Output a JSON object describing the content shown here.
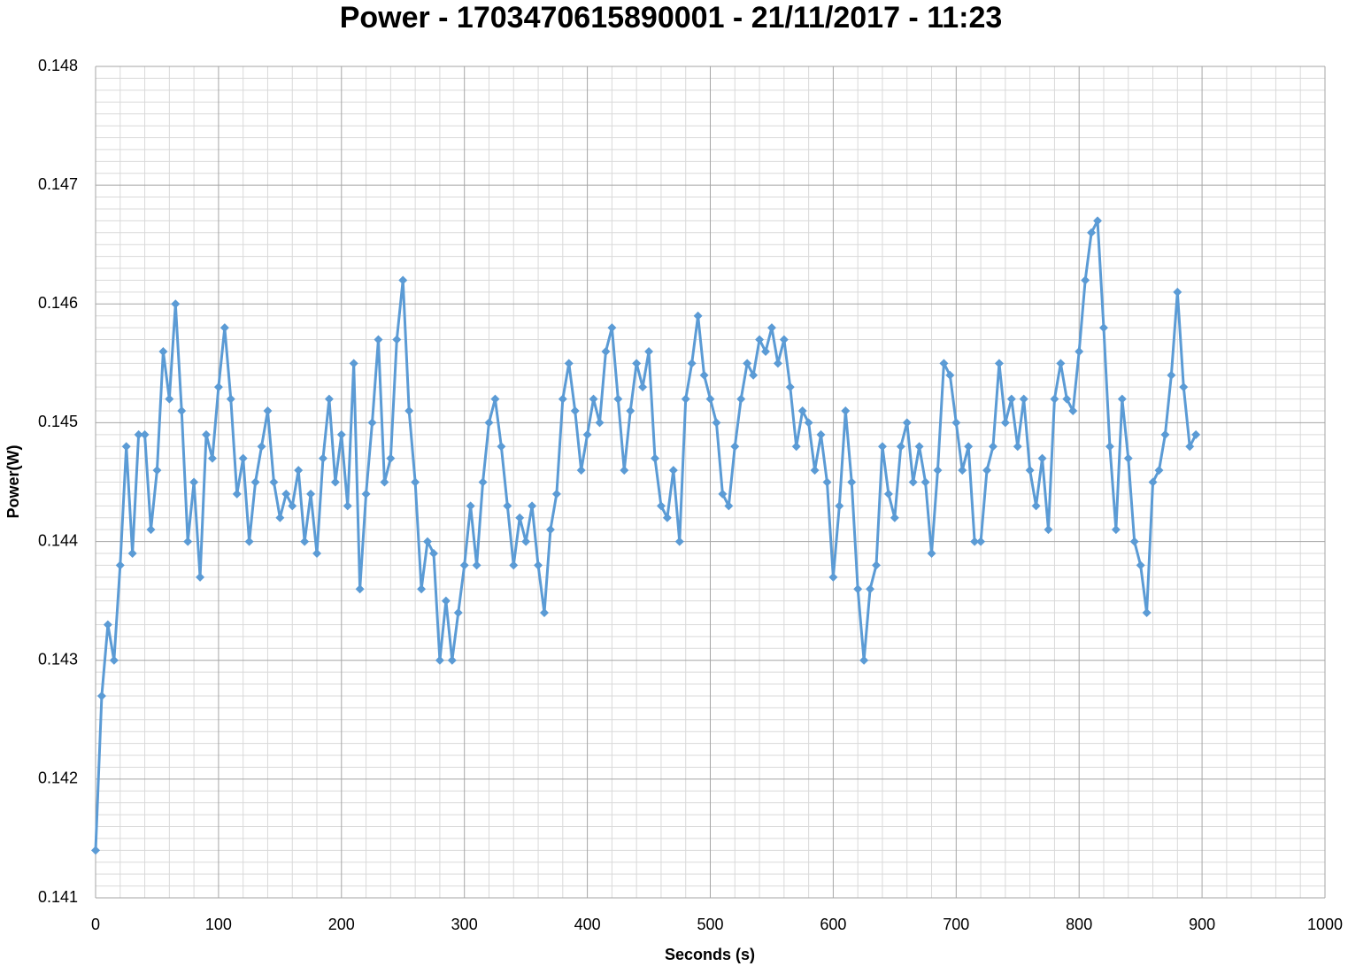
{
  "chart_data": {
    "type": "line",
    "title": "Power - 1703470615890001 - 21/11/2017 - 11:23",
    "x_label": "Seconds (s)",
    "y_label": "Power(W)",
    "xlim": [
      0,
      1000
    ],
    "xticks": [
      0,
      100,
      200,
      300,
      400,
      500,
      600,
      700,
      800,
      900,
      1000
    ],
    "ylim": [
      0.141,
      0.148
    ],
    "yticks": [
      0.141,
      0.142,
      0.143,
      0.144,
      0.145,
      0.146,
      0.147,
      0.148
    ],
    "grid": true,
    "minor_grid": true,
    "marker": "diamond",
    "x": [
      0,
      5,
      10,
      15,
      20,
      25,
      30,
      35,
      40,
      45,
      50,
      55,
      60,
      65,
      70,
      75,
      80,
      85,
      90,
      95,
      100,
      105,
      110,
      115,
      120,
      125,
      130,
      135,
      140,
      145,
      150,
      155,
      160,
      165,
      170,
      175,
      180,
      185,
      190,
      195,
      200,
      205,
      210,
      215,
      220,
      225,
      230,
      235,
      240,
      245,
      250,
      255,
      260,
      265,
      270,
      275,
      280,
      285,
      290,
      295,
      300,
      305,
      310,
      315,
      320,
      325,
      330,
      335,
      340,
      345,
      350,
      355,
      360,
      365,
      370,
      375,
      380,
      385,
      390,
      395,
      400,
      405,
      410,
      415,
      420,
      425,
      430,
      435,
      440,
      445,
      450,
      455,
      460,
      465,
      470,
      475,
      480,
      485,
      490,
      495,
      500,
      505,
      510,
      515,
      520,
      525,
      530,
      535,
      540,
      545,
      550,
      555,
      560,
      565,
      570,
      575,
      580,
      585,
      590,
      595,
      600,
      605,
      610,
      615,
      620,
      625,
      630,
      635,
      640,
      645,
      650,
      655,
      660,
      665,
      670,
      675,
      680,
      685,
      690,
      695,
      700,
      705,
      710,
      715,
      720,
      725,
      730,
      735,
      740,
      745,
      750,
      755,
      760,
      765,
      770,
      775,
      780,
      785,
      790,
      795,
      800,
      805,
      810,
      815,
      820,
      825,
      830,
      835,
      840,
      845,
      850,
      855,
      860,
      865,
      870,
      875,
      880,
      885,
      890,
      895
    ],
    "series": [
      {
        "name": "Power(W)",
        "color": "#5b9bd5",
        "values": [
          0.1414,
          0.1427,
          0.1433,
          0.143,
          0.1438,
          0.1448,
          0.1439,
          0.1449,
          0.1449,
          0.1441,
          0.1446,
          0.1456,
          0.1452,
          0.146,
          0.1451,
          0.144,
          0.1445,
          0.1437,
          0.1449,
          0.1447,
          0.1453,
          0.1458,
          0.1452,
          0.1444,
          0.1447,
          0.144,
          0.1445,
          0.1448,
          0.1451,
          0.1445,
          0.1442,
          0.1444,
          0.1443,
          0.1446,
          0.144,
          0.1444,
          0.1439,
          0.1447,
          0.1452,
          0.1445,
          0.1449,
          0.1443,
          0.1455,
          0.1436,
          0.1444,
          0.145,
          0.1457,
          0.1445,
          0.1447,
          0.1457,
          0.1462,
          0.1451,
          0.1445,
          0.1436,
          0.144,
          0.1439,
          0.143,
          0.1435,
          0.143,
          0.1434,
          0.1438,
          0.1443,
          0.1438,
          0.1445,
          0.145,
          0.1452,
          0.1448,
          0.1443,
          0.1438,
          0.1442,
          0.144,
          0.1443,
          0.1438,
          0.1434,
          0.1441,
          0.1444,
          0.1452,
          0.1455,
          0.1451,
          0.1446,
          0.1449,
          0.1452,
          0.145,
          0.1456,
          0.1458,
          0.1452,
          0.1446,
          0.1451,
          0.1455,
          0.1453,
          0.1456,
          0.1447,
          0.1443,
          0.1442,
          0.1446,
          0.144,
          0.1452,
          0.1455,
          0.1459,
          0.1454,
          0.1452,
          0.145,
          0.1444,
          0.1443,
          0.1448,
          0.1452,
          0.1455,
          0.1454,
          0.1457,
          0.1456,
          0.1458,
          0.1455,
          0.1457,
          0.1453,
          0.1448,
          0.1451,
          0.145,
          0.1446,
          0.1449,
          0.1445,
          0.1437,
          0.1443,
          0.1451,
          0.1445,
          0.1436,
          0.143,
          0.1436,
          0.1438,
          0.1448,
          0.1444,
          0.1442,
          0.1448,
          0.145,
          0.1445,
          0.1448,
          0.1445,
          0.1439,
          0.1446,
          0.1455,
          0.1454,
          0.145,
          0.1446,
          0.1448,
          0.144,
          0.144,
          0.1446,
          0.1448,
          0.1455,
          0.145,
          0.1452,
          0.1448,
          0.1452,
          0.1446,
          0.1443,
          0.1447,
          0.1441,
          0.1452,
          0.1455,
          0.1452,
          0.1451,
          0.1456,
          0.1462,
          0.1466,
          0.1467,
          0.1458,
          0.1448,
          0.1441,
          0.1452,
          0.1447,
          0.144,
          0.1438,
          0.1434,
          0.1445,
          0.1446,
          0.1449,
          0.1454,
          0.1461,
          0.1453,
          0.1448,
          0.1449
        ]
      }
    ]
  }
}
